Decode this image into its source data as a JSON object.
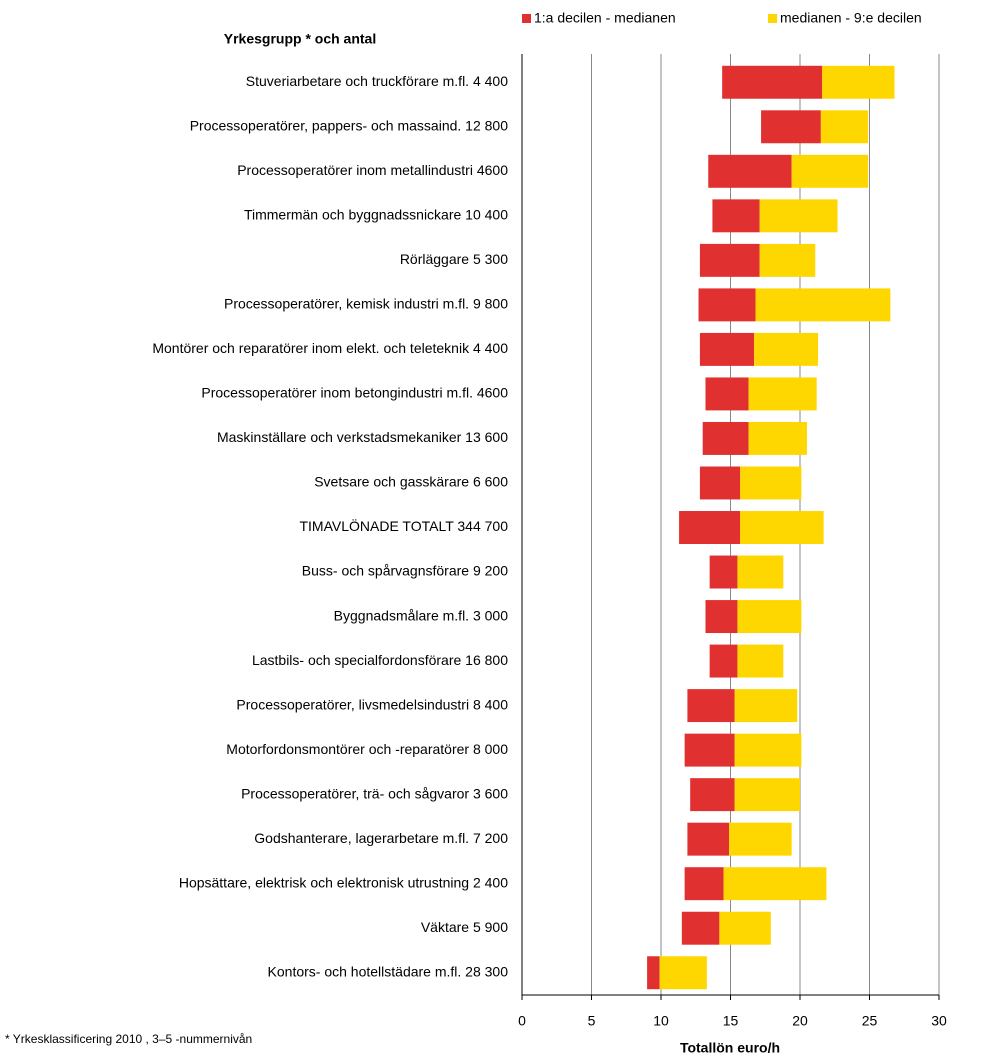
{
  "chart_data": {
    "type": "floating_stacked_barh",
    "header": "Yrkesgrupp * och antal",
    "xlabel": "Totallön euro/h",
    "footnote": "* Yrkesklassificering 2010 , 3–5 -nummernivån",
    "categories": [
      "Stuveriarbetare och truckförare m.fl.  4 400",
      "Processoperatörer, pappers- och massaind. 12 800",
      "Processoperatörer inom metallindustri  4600",
      "Timmermän och byggnadssnickare 10 400",
      "Rörläggare 5 300",
      "Processoperatörer, kemisk industri m.fl.  9 800",
      "Montörer och reparatörer inom elekt. och teleteknik 4 400",
      "Processoperatörer inom betongindustri m.fl.  4600",
      "Maskinställare och verkstadsmekaniker 13 600",
      "Svetsare och gasskärare 6 600",
      "TIMAVLÖNADE TOTALT  344 700",
      "Buss- och spårvagnsförare 9 200",
      "Byggnadsmålare m.fl. 3 000",
      "Lastbils- och specialfordonsförare 16 800",
      "Processoperatörer, livsmedelsindustri  8  400",
      "Motorfordonsmontörer och -reparatörer 8 000",
      "Processoperatörer, trä- och sågvaror 3 600",
      "Godshanterare, lagerarbetare m.fl. 7 200",
      "Hopsättare, elektrisk och elektronisk utrustning    2 400",
      "Väktare 5 900",
      "Kontors- och hotellstädare m.fl. 28 300"
    ],
    "low": [
      14.4,
      17.2,
      13.4,
      13.7,
      12.8,
      12.7,
      12.8,
      13.2,
      13.0,
      12.8,
      11.3,
      13.5,
      13.2,
      13.5,
      11.9,
      11.7,
      12.1,
      11.9,
      11.7,
      11.5,
      9.0
    ],
    "series": [
      {
        "name": "1:a decilen - medianen",
        "color": "#e03030",
        "values": [
          7.2,
          4.3,
          6.0,
          3.4,
          4.3,
          4.1,
          3.9,
          3.1,
          3.3,
          2.9,
          4.4,
          2.0,
          2.3,
          2.0,
          3.4,
          3.6,
          3.2,
          3.0,
          2.8,
          2.7,
          0.9
        ]
      },
      {
        "name": "medianen - 9:e decilen",
        "color": "#ffd700",
        "values": [
          5.2,
          3.4,
          5.5,
          5.6,
          4.0,
          9.7,
          4.6,
          4.9,
          4.2,
          4.4,
          6.0,
          3.3,
          4.6,
          3.3,
          4.5,
          4.8,
          4.7,
          4.5,
          7.4,
          3.7,
          3.4
        ]
      }
    ],
    "xlim": [
      0,
      30
    ],
    "xticks": [
      0,
      5,
      10,
      15,
      20,
      25,
      30
    ],
    "grid": true
  }
}
